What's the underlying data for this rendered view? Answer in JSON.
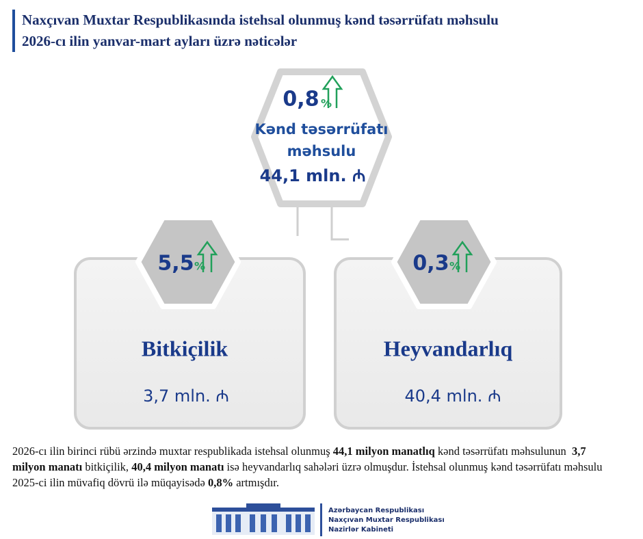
{
  "header": {
    "title_lines": [
      "Naxçıvan Muxtar Respublikasında istehsal olunmuş kənd təsərrüfatı məhsulu",
      "2026-cı ilin yanvar-mart ayları üzrə nəticələr"
    ]
  },
  "main": {
    "percent": "0,8",
    "percent_sign": "%",
    "label_lines": [
      "Kənd təsərrüfatı",
      "məhsulu"
    ],
    "amount": "44,1 mln. ₼"
  },
  "cards": [
    {
      "percent": "5,5",
      "percent_sign": "%",
      "label": "Bitkiçilik",
      "amount": "3,7 mln. ₼"
    },
    {
      "percent": "0,3",
      "percent_sign": "%",
      "label": "Heyvandarlıq",
      "amount": "40,4 mln. ₼"
    }
  ],
  "paragraph": [
    {
      "text": "2026-cı ilin birinci rübü ərzində muxtar respublikada istehsal olunmuş ",
      "bold": false
    },
    {
      "text": "44,1 milyon manatlıq",
      "bold": true
    },
    {
      "text": " kənd təsərrüfatı məhsulunun  ",
      "bold": false
    },
    {
      "text": "3,7 milyon manatı",
      "bold": true
    },
    {
      "text": " bitkiçilik, ",
      "bold": false
    },
    {
      "text": "40,4 milyon manatı",
      "bold": true
    },
    {
      "text": " isə heyvandarlıq sahələri üzrə olmuşdur. İstehsal olunmuş kənd təsərrüfatı məhsulu 2025-ci ilin müvafiq dövrü ilə müqayisədə ",
      "bold": false
    },
    {
      "text": "0,8%",
      "bold": true
    },
    {
      "text": " artmışdır.",
      "bold": false
    }
  ],
  "footer": {
    "org_lines": [
      "Azərbaycan Respublikası",
      "Naxçıvan Muxtar Respublikası",
      "Nazirlər Kabineti"
    ]
  }
}
